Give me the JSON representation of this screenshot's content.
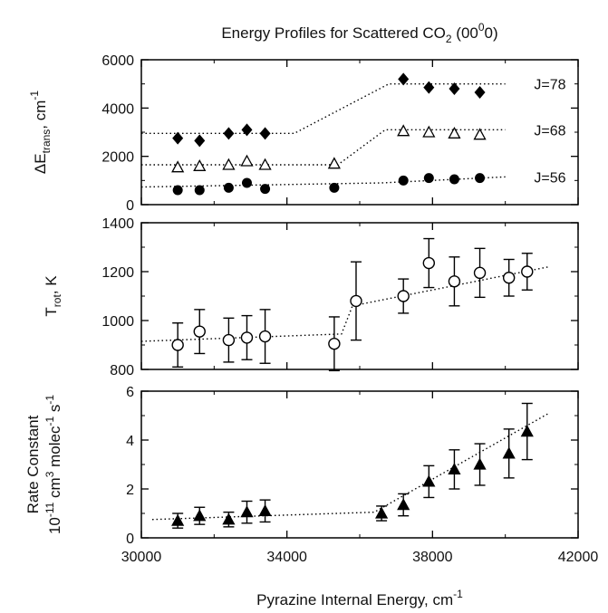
{
  "title": {
    "prefix": "Energy Profiles for Scattered CO",
    "sub": "2",
    "mid": " (00",
    "sup": "0",
    "suffix": "0)"
  },
  "xaxis": {
    "label": "Pyrazine Internal Energy, cm",
    "label_sup": "-1",
    "range": [
      30000,
      42000
    ],
    "ticks": [
      30000,
      34000,
      38000,
      42000
    ],
    "tick_labels": [
      "30000",
      "34000",
      "38000",
      "42000"
    ]
  },
  "chart_data": [
    {
      "type": "scatter",
      "ylabel": {
        "prefix": "ΔE",
        "sub": "trans",
        "suffix": ", cm",
        "sup": "-1"
      },
      "ylim": [
        0,
        6000
      ],
      "yticks": [
        0,
        2000,
        4000,
        6000
      ],
      "ytick_labels": [
        "0",
        "2000",
        "4000",
        "6000"
      ],
      "series": [
        {
          "name": "J=78",
          "marker": "diamond-filled",
          "x": [
            31000,
            31600,
            32400,
            32900,
            33400,
            37200,
            37900,
            38600,
            39300
          ],
          "y": [
            2750,
            2650,
            2950,
            3100,
            2950,
            5200,
            4850,
            4800,
            4650
          ],
          "fit": [
            [
              30000,
              2950
            ],
            [
              34200,
              2950
            ],
            [
              36800,
              5000
            ],
            [
              40000,
              5000
            ]
          ]
        },
        {
          "name": "J=68",
          "marker": "triangle-open",
          "x": [
            31000,
            31600,
            32400,
            32900,
            33400,
            35300,
            37200,
            37900,
            38600,
            39300
          ],
          "y": [
            1550,
            1600,
            1650,
            1800,
            1650,
            1700,
            3050,
            3000,
            2950,
            2900
          ],
          "fit": [
            [
              30000,
              1650
            ],
            [
              35400,
              1650
            ],
            [
              36700,
              3100
            ],
            [
              40000,
              3100
            ]
          ]
        },
        {
          "name": "J=56",
          "marker": "circle-filled",
          "x": [
            31000,
            31600,
            32400,
            32900,
            33400,
            35300,
            37200,
            37900,
            38600,
            39300
          ],
          "y": [
            600,
            600,
            700,
            900,
            650,
            700,
            1000,
            1100,
            1050,
            1100
          ],
          "fit": [
            [
              30000,
              730
            ],
            [
              36600,
              900
            ],
            [
              40000,
              1150
            ]
          ]
        }
      ]
    },
    {
      "type": "scatter",
      "ylabel": {
        "prefix": "T",
        "sub": "rot",
        "suffix": ", K",
        "sup": ""
      },
      "ylim": [
        800,
        1400
      ],
      "yticks": [
        800,
        1000,
        1200,
        1400
      ],
      "ytick_labels": [
        "800",
        "1000",
        "1200",
        "1400"
      ],
      "series": [
        {
          "name": "",
          "marker": "circle-open",
          "x": [
            31000,
            31600,
            32400,
            32900,
            33400,
            35300,
            35900,
            37200,
            37900,
            38600,
            39300,
            40100,
            40600
          ],
          "y": [
            900,
            955,
            920,
            930,
            935,
            905,
            1080,
            1100,
            1235,
            1160,
            1195,
            1175,
            1200
          ],
          "err": [
            90,
            90,
            90,
            90,
            110,
            110,
            160,
            70,
            100,
            100,
            100,
            75,
            75
          ],
          "fit": [
            [
              30000,
              915
            ],
            [
              35500,
              945
            ],
            [
              35800,
              1060
            ],
            [
              41200,
              1220
            ]
          ]
        }
      ]
    },
    {
      "type": "scatter",
      "ylabel": {
        "line1": "Rate Constant",
        "line2_prefix": "10",
        "line2_sup1": "-11",
        "line2_mid": " cm",
        "line2_sup2": "3",
        "line2_mid2": " molec",
        "line2_sup3": "-1",
        "line2_mid3": " s",
        "line2_sup4": "-1"
      },
      "ylim": [
        0,
        6
      ],
      "yticks": [
        0,
        2,
        4,
        6
      ],
      "ytick_labels": [
        "0",
        "2",
        "4",
        "6"
      ],
      "series": [
        {
          "name": "",
          "marker": "triangle-filled",
          "x": [
            31000,
            31600,
            32400,
            32900,
            33400,
            36600,
            37200,
            37900,
            38600,
            39300,
            40100,
            40600
          ],
          "y": [
            0.7,
            0.9,
            0.75,
            1.05,
            1.1,
            1.0,
            1.35,
            2.3,
            2.8,
            3.0,
            3.45,
            4.35
          ],
          "err": [
            0.3,
            0.35,
            0.3,
            0.45,
            0.45,
            0.3,
            0.45,
            0.65,
            0.8,
            0.85,
            1.0,
            1.15
          ],
          "fit": [
            [
              30300,
              0.75
            ],
            [
              36400,
              1.05
            ],
            [
              41200,
              5.1
            ]
          ]
        }
      ]
    }
  ]
}
